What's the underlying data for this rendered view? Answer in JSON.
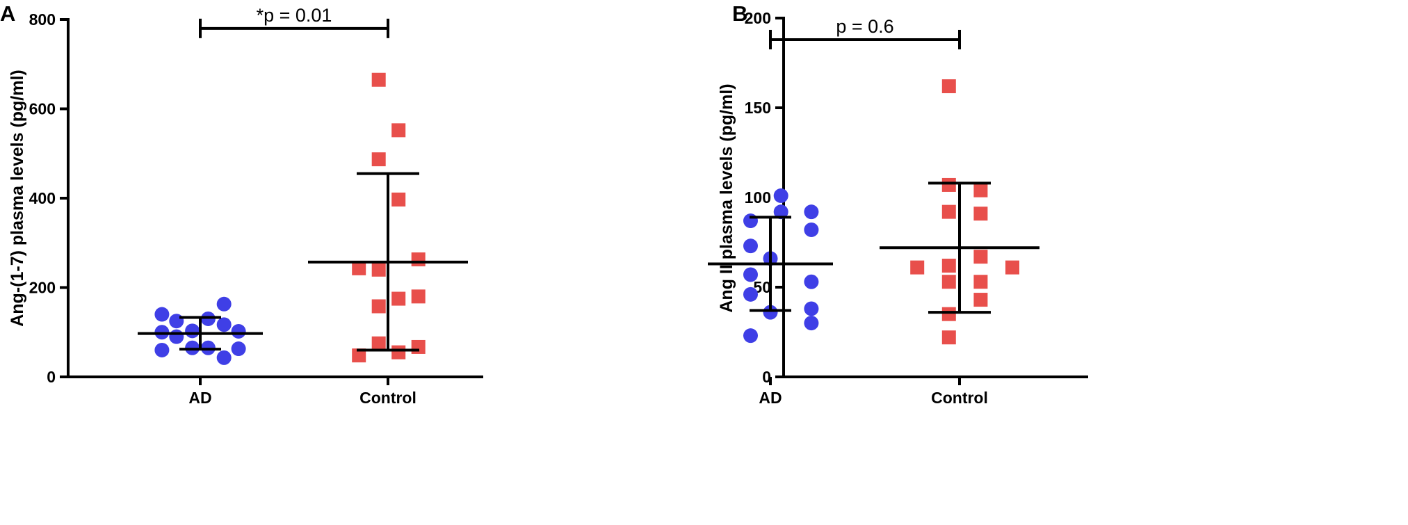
{
  "colors": {
    "ad": "#3f3fe6",
    "control": "#e84f4b",
    "axis": "#000000"
  },
  "chart_data": [
    {
      "panel_label": "A",
      "type": "scatter",
      "title": "",
      "xlabel": "",
      "ylabel": "Ang-(1-7) plasma levels (pg/ml)",
      "ylim": [
        0,
        800
      ],
      "yticks": [
        0,
        200,
        400,
        600,
        800
      ],
      "categories": [
        "AD",
        "Control"
      ],
      "significance": {
        "label": "*p = 0.01",
        "y": 780
      },
      "series": [
        {
          "name": "AD",
          "marker": "circle",
          "points": [
            {
              "x": -0.29,
              "y": 140
            },
            {
              "x": -0.29,
              "y": 100
            },
            {
              "x": -0.29,
              "y": 60
            },
            {
              "x": -0.18,
              "y": 125
            },
            {
              "x": -0.18,
              "y": 90
            },
            {
              "x": -0.06,
              "y": 103
            },
            {
              "x": -0.06,
              "y": 65
            },
            {
              "x": 0.06,
              "y": 130
            },
            {
              "x": 0.06,
              "y": 65
            },
            {
              "x": 0.18,
              "y": 163
            },
            {
              "x": 0.18,
              "y": 117
            },
            {
              "x": 0.18,
              "y": 43
            },
            {
              "x": 0.29,
              "y": 102
            },
            {
              "x": 0.29,
              "y": 63
            }
          ],
          "mean": 97,
          "sd_upper": 133,
          "sd_lower": 62
        },
        {
          "name": "Control",
          "marker": "square",
          "points": [
            {
              "x": -0.07,
              "y": 665
            },
            {
              "x": 0.08,
              "y": 552
            },
            {
              "x": -0.07,
              "y": 487
            },
            {
              "x": 0.08,
              "y": 397
            },
            {
              "x": 0.23,
              "y": 263
            },
            {
              "x": -0.22,
              "y": 243
            },
            {
              "x": -0.07,
              "y": 240
            },
            {
              "x": 0.23,
              "y": 180
            },
            {
              "x": 0.08,
              "y": 175
            },
            {
              "x": -0.07,
              "y": 158
            },
            {
              "x": -0.07,
              "y": 75
            },
            {
              "x": 0.23,
              "y": 67
            },
            {
              "x": 0.08,
              "y": 55
            },
            {
              "x": -0.22,
              "y": 48
            }
          ],
          "mean": 257,
          "sd_upper": 455,
          "sd_lower": 60
        }
      ]
    },
    {
      "panel_label": "B",
      "type": "scatter",
      "title": "",
      "xlabel": "",
      "ylabel": "Ang II plasma levels (pg/ml)",
      "ylim": [
        0,
        200
      ],
      "yticks": [
        0,
        50,
        100,
        150,
        200
      ],
      "categories": [
        "AD",
        "Control"
      ],
      "significance": {
        "label": "p = 0.6",
        "y": 188
      },
      "series": [
        {
          "name": "AD",
          "marker": "circle",
          "points": [
            {
              "x": 0.08,
              "y": 101
            },
            {
              "x": -0.15,
              "y": 87
            },
            {
              "x": 0.08,
              "y": 92
            },
            {
              "x": 0.31,
              "y": 92
            },
            {
              "x": 0.31,
              "y": 82
            },
            {
              "x": -0.15,
              "y": 73
            },
            {
              "x": 0.0,
              "y": 66
            },
            {
              "x": -0.15,
              "y": 57
            },
            {
              "x": 0.31,
              "y": 53
            },
            {
              "x": -0.15,
              "y": 46
            },
            {
              "x": 0.31,
              "y": 38
            },
            {
              "x": 0.0,
              "y": 36
            },
            {
              "x": 0.31,
              "y": 30
            },
            {
              "x": -0.15,
              "y": 23
            }
          ],
          "mean": 63,
          "sd_upper": 89,
          "sd_lower": 37
        },
        {
          "name": "Control",
          "marker": "square",
          "points": [
            {
              "x": -0.08,
              "y": 162
            },
            {
              "x": -0.08,
              "y": 107
            },
            {
              "x": 0.16,
              "y": 104
            },
            {
              "x": -0.08,
              "y": 92
            },
            {
              "x": 0.16,
              "y": 91
            },
            {
              "x": 0.16,
              "y": 67
            },
            {
              "x": -0.32,
              "y": 61
            },
            {
              "x": 0.4,
              "y": 61
            },
            {
              "x": -0.08,
              "y": 62
            },
            {
              "x": -0.08,
              "y": 53
            },
            {
              "x": 0.16,
              "y": 53
            },
            {
              "x": 0.16,
              "y": 43
            },
            {
              "x": -0.08,
              "y": 35
            },
            {
              "x": -0.08,
              "y": 22
            }
          ],
          "mean": 72,
          "sd_upper": 108,
          "sd_lower": 36
        }
      ]
    }
  ]
}
